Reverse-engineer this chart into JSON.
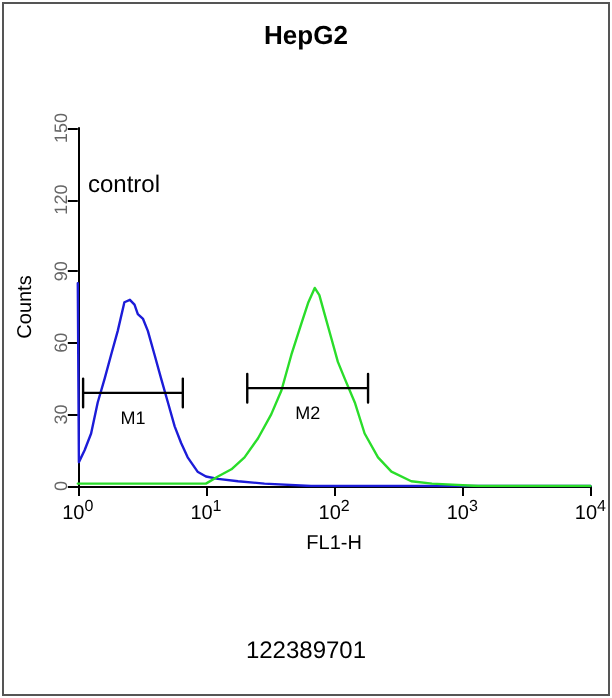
{
  "chart_data": {
    "type": "line",
    "title": "HepG2",
    "xlabel": "FL1-H",
    "ylabel": "Counts",
    "annotations": [
      "control",
      "122389701"
    ],
    "log": "x",
    "grid": false,
    "marker": "none",
    "line_style": "solid",
    "xlim": [
      1,
      10000
    ],
    "xticks": [
      {
        "value": 1,
        "label": "10$^{0}$"
      },
      {
        "value": 10,
        "label": "10$^{1}$"
      },
      {
        "value": 100,
        "label": "10$^{2}$"
      },
      {
        "value": 1000,
        "label": "10$^{3}$"
      },
      {
        "value": 10000,
        "label": "10$^{4}$"
      }
    ],
    "ylim": [
      0,
      150
    ],
    "yticks": [
      0,
      30,
      60,
      90,
      120,
      150
    ],
    "series": [
      {
        "color": "#1c1cd8",
        "x": [
          1,
          1.02,
          1.13,
          1.27,
          1.43,
          1.62,
          1.82,
          2.05,
          2.31,
          2.55,
          2.77,
          2.94,
          3.23,
          3.52,
          3.97,
          4.47,
          5.05,
          5.7,
          6.4,
          7.2,
          8.6,
          10,
          12.4,
          17.8,
          28.6,
          66,
          400,
          10000
        ],
        "values": [
          85,
          10,
          15,
          22,
          35,
          45,
          55,
          65,
          77,
          78,
          76,
          72,
          70,
          65,
          55,
          45,
          35,
          25,
          18,
          12,
          6,
          4,
          3,
          2,
          1,
          0,
          0,
          0
        ]
      },
      {
        "color": "#2add2a",
        "x": [
          1,
          10,
          12.4,
          15.8,
          20,
          25.5,
          32.3,
          38.8,
          46.4,
          55.5,
          63,
          70.6,
          76.7,
          84.3,
          95,
          107,
          121,
          145,
          173,
          220,
          280,
          400,
          580,
          1330,
          10000
        ],
        "values": [
          1,
          1,
          4,
          7,
          12,
          20,
          30,
          40,
          55,
          68,
          77,
          83,
          80,
          72,
          62,
          52,
          45,
          35,
          22,
          12,
          6,
          2,
          1,
          0,
          0
        ]
      },
      {
        "name": "M1",
        "color": "#000000",
        "x": [
          1.1,
          1.1,
          1.1,
          6.6,
          6.6,
          6.6
        ],
        "values": [
          45,
          33,
          39,
          39,
          45,
          33
        ]
      },
      {
        "name": "M2",
        "color": "#000000",
        "x": [
          21,
          21,
          21,
          184,
          184,
          184
        ],
        "values": [
          47,
          35,
          41,
          41,
          47,
          35
        ]
      }
    ]
  }
}
